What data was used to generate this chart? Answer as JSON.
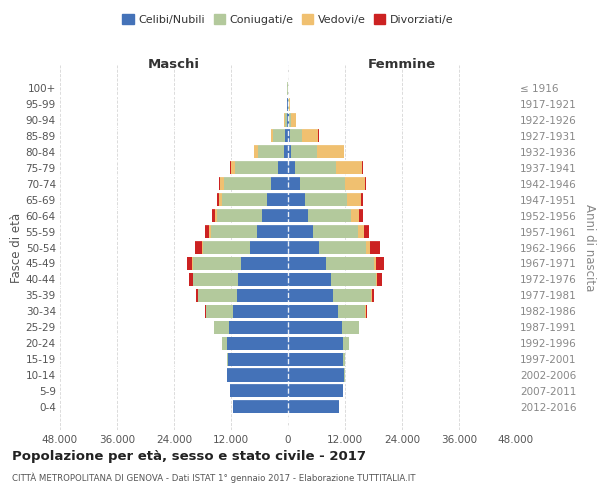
{
  "age_groups": [
    "0-4",
    "5-9",
    "10-14",
    "15-19",
    "20-24",
    "25-29",
    "30-34",
    "35-39",
    "40-44",
    "45-49",
    "50-54",
    "55-59",
    "60-64",
    "65-69",
    "70-74",
    "75-79",
    "80-84",
    "85-89",
    "90-94",
    "95-99",
    "100+"
  ],
  "birth_years": [
    "2012-2016",
    "2007-2011",
    "2002-2006",
    "1997-2001",
    "1992-1996",
    "1987-1991",
    "1982-1986",
    "1977-1981",
    "1972-1976",
    "1967-1971",
    "1962-1966",
    "1957-1961",
    "1952-1956",
    "1947-1951",
    "1942-1946",
    "1937-1941",
    "1932-1936",
    "1927-1931",
    "1922-1926",
    "1917-1921",
    "≤ 1916"
  ],
  "males": {
    "celibi": [
      11500,
      12200,
      12800,
      12600,
      12900,
      12500,
      11500,
      10800,
      10500,
      10000,
      8000,
      6500,
      5500,
      4500,
      3500,
      2200,
      900,
      600,
      300,
      150,
      80
    ],
    "coniugati": [
      20,
      50,
      100,
      300,
      1000,
      3000,
      5800,
      8200,
      9500,
      10000,
      10000,
      9800,
      9500,
      9500,
      10000,
      9000,
      5500,
      2500,
      400,
      100,
      40
    ],
    "vedovi": [
      0,
      0,
      1,
      2,
      5,
      10,
      20,
      40,
      80,
      150,
      200,
      280,
      450,
      550,
      750,
      800,
      700,
      500,
      200,
      50,
      10
    ],
    "divorziati": [
      0,
      2,
      5,
      10,
      30,
      80,
      150,
      280,
      700,
      1100,
      1400,
      800,
      550,
      350,
      250,
      150,
      80,
      40,
      20,
      10,
      5
    ]
  },
  "females": {
    "nubili": [
      10800,
      11500,
      11800,
      11600,
      11600,
      11400,
      10500,
      9500,
      9000,
      8000,
      6500,
      5200,
      4200,
      3500,
      2500,
      1500,
      700,
      400,
      180,
      80,
      60
    ],
    "coniugate": [
      20,
      50,
      120,
      400,
      1200,
      3500,
      5800,
      8000,
      9500,
      10000,
      10000,
      9500,
      9000,
      9000,
      9500,
      8500,
      5500,
      2500,
      400,
      80,
      20
    ],
    "vedove": [
      0,
      0,
      2,
      5,
      10,
      25,
      60,
      140,
      320,
      550,
      800,
      1300,
      1800,
      2800,
      4200,
      5500,
      5500,
      3500,
      1100,
      200,
      20
    ],
    "divorziate": [
      0,
      2,
      5,
      15,
      40,
      100,
      200,
      380,
      900,
      1700,
      2000,
      1000,
      700,
      500,
      300,
      200,
      100,
      50,
      20,
      10,
      5
    ]
  },
  "colors": {
    "celibi": "#4472b8",
    "coniugati": "#b3c99c",
    "vedovi": "#f0c070",
    "divorziati": "#cc2222"
  },
  "title": "Popolazione per età, sesso e stato civile - 2017",
  "subtitle": "CITTÀ METROPOLITANA DI GENOVA - Dati ISTAT 1° gennaio 2017 - Elaborazione TUTTITALIA.IT",
  "xlabel_left": "Maschi",
  "xlabel_right": "Femmine",
  "ylabel_left": "Fasce di età",
  "ylabel_right": "Anni di nascita",
  "xlim": 48000,
  "xtick_vals": [
    -48000,
    -36000,
    -24000,
    -12000,
    0,
    12000,
    24000,
    36000,
    48000
  ],
  "xtick_labels": [
    "48.000",
    "36.000",
    "24.000",
    "12.000",
    "0",
    "12.000",
    "24.000",
    "36.000",
    "48.000"
  ],
  "legend_labels": [
    "Celibi/Nubili",
    "Coniugati/e",
    "Vedovi/e",
    "Divorziati/e"
  ],
  "legend_colors": [
    "#4472b8",
    "#b3c99c",
    "#f0c070",
    "#cc2222"
  ],
  "bg_color": "#ffffff",
  "grid_color": "#cccccc"
}
